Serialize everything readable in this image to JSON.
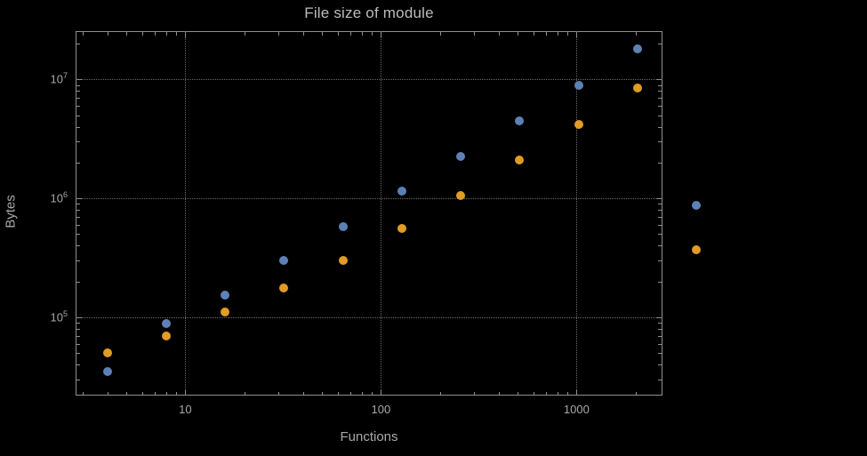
{
  "colors": {
    "background": "#000000",
    "frame": "#8f8f8f",
    "grid": "#6b6b6b",
    "text": "#a8a8a8",
    "series_blue": "#5e81b5",
    "series_orange": "#e19c24"
  },
  "chart_data": {
    "type": "scatter",
    "title": "File size of module",
    "xlabel": "Functions",
    "ylabel": "Bytes",
    "x_scale": "log",
    "y_scale": "log",
    "grid": "dotted lines at major ticks only",
    "legend_position": "none",
    "x": [
      4,
      8,
      16,
      32,
      64,
      128,
      256,
      512,
      1024,
      2048,
      4096
    ],
    "series": [
      {
        "name": "blue-series",
        "color": "#5e81b5",
        "values": [
          35000,
          88000,
          155000,
          300000,
          580000,
          1150000,
          2250000,
          4500000,
          9000000,
          18000000,
          880000
        ]
      },
      {
        "name": "orange-series",
        "color": "#e19c24",
        "values": [
          50000,
          70000,
          110000,
          175000,
          300000,
          560000,
          1050000,
          2100000,
          4200000,
          8500000,
          370000
        ]
      }
    ],
    "axis": {
      "x": {
        "min": 2.75,
        "max": 2750,
        "ticks": [
          {
            "v": 10,
            "label": "10"
          },
          {
            "v": 100,
            "label": "100"
          },
          {
            "v": 1000,
            "label": "1000"
          }
        ]
      },
      "y": {
        "min": 22000,
        "max": 25500000,
        "ticks": [
          {
            "v": 100000,
            "base": "10",
            "exp": "5"
          },
          {
            "v": 1000000,
            "base": "10",
            "exp": "6"
          },
          {
            "v": 10000000,
            "base": "10",
            "exp": "7"
          }
        ]
      }
    }
  }
}
